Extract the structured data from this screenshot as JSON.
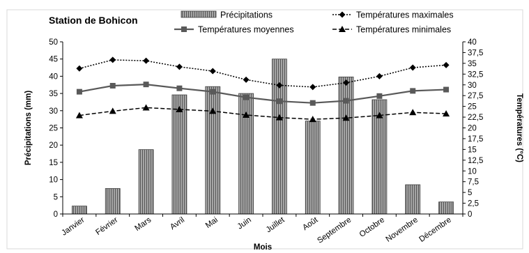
{
  "chart_data": {
    "type": "bar+line",
    "title": "Station de Bohicon",
    "xlabel": "Mois",
    "ylabel_left": "Précipitations (mm)",
    "ylabel_right": "Températures (°C)",
    "categories": [
      "Janvier",
      "Février",
      "Mars",
      "Avril",
      "Mai",
      "Juin",
      "Juillet",
      "Août",
      "Septembre",
      "Octobre",
      "Novembre",
      "Décembre"
    ],
    "left_axis": {
      "min": 0,
      "max": 50,
      "step": 5,
      "tick_labels": [
        "0",
        "5",
        "10",
        "15",
        "20",
        "25",
        "30",
        "35",
        "40",
        "45",
        "50"
      ]
    },
    "right_axis": {
      "min": 0,
      "max": 40,
      "step": 2.5,
      "tick_labels": [
        "0",
        "2,5",
        "5",
        "7,5",
        "10",
        "12,5",
        "15",
        "17,5",
        "20",
        "22,5",
        "25",
        "27,5",
        "30",
        "32,5",
        "35",
        "37,5",
        "40"
      ]
    },
    "grid": false,
    "legend_position": "top",
    "series": [
      {
        "name": "Précipitations",
        "kind": "bar",
        "axis": "left",
        "color": "#7f7f7f",
        "values": [
          2.3,
          7.4,
          18.7,
          34.6,
          37.0,
          35.0,
          45.0,
          27.0,
          39.8,
          33.2,
          8.5,
          3.5
        ]
      },
      {
        "name": "Températures maximales",
        "kind": "line",
        "axis": "right",
        "style": "dotted",
        "marker": "diamond",
        "color": "#000000",
        "values": [
          33.8,
          35.8,
          35.6,
          34.2,
          33.2,
          31.2,
          29.9,
          29.5,
          30.5,
          32.0,
          34.0,
          34.6
        ]
      },
      {
        "name": "Températures moyennes",
        "kind": "line",
        "axis": "right",
        "style": "solid",
        "marker": "square",
        "color": "#595959",
        "values": [
          28.4,
          29.8,
          30.1,
          29.2,
          28.4,
          27.1,
          26.2,
          25.8,
          26.3,
          27.4,
          28.6,
          28.9
        ]
      },
      {
        "name": "Températures minimales",
        "kind": "line",
        "axis": "right",
        "style": "dashed",
        "marker": "triangle",
        "color": "#000000",
        "values": [
          22.9,
          23.9,
          24.7,
          24.3,
          23.9,
          23.0,
          22.4,
          22.0,
          22.3,
          22.9,
          23.6,
          23.3
        ]
      }
    ]
  }
}
